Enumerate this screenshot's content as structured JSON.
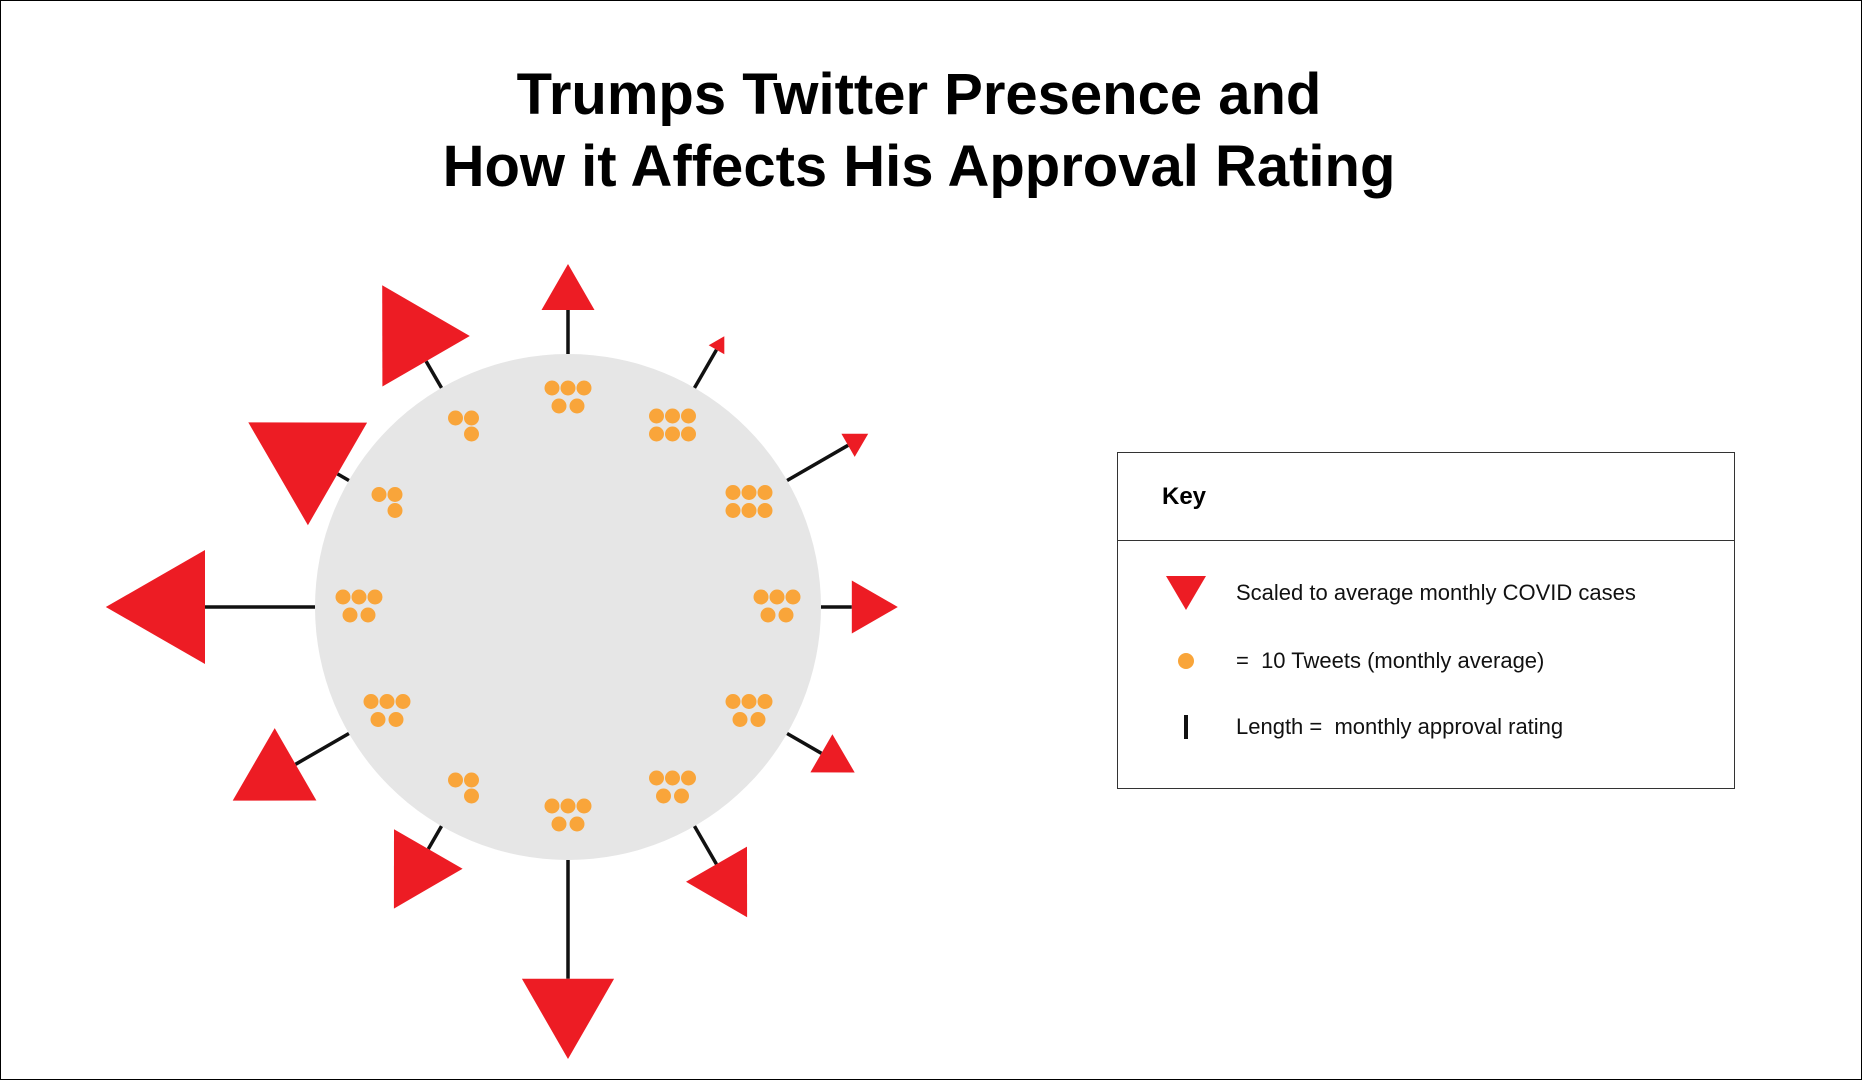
{
  "title": {
    "line1": "Trumps Twitter Presence and",
    "line2": "How it Affects His Approval Rating"
  },
  "colors": {
    "body": "#e6e6e6",
    "spike": "#ed1c24",
    "tweet_dot": "#f9a53a",
    "stem": "#111111"
  },
  "key": {
    "title": "Key",
    "items": [
      {
        "symbol": "red-triangle",
        "label": "Scaled to average monthly COVID cases"
      },
      {
        "symbol": "orange-dot",
        "label": "=  10 Tweets (monthly average)"
      },
      {
        "symbol": "black-line",
        "label": "Length =  monthly approval rating"
      }
    ]
  },
  "spikes": [
    {
      "dots": 5,
      "stem": 1.0,
      "covid": 1.0
    },
    {
      "dots": 6,
      "stem": 1.0,
      "covid": 0.2
    },
    {
      "dots": 6,
      "stem": 1.6,
      "covid": 0.4
    },
    {
      "dots": 5,
      "stem": 0.7,
      "covid": 1.0
    },
    {
      "dots": 5,
      "stem": 0.9,
      "covid": 0.8
    },
    {
      "dots": 5,
      "stem": 1.0,
      "covid": 1.4
    },
    {
      "dots": 5,
      "stem": 2.7,
      "covid": 1.9
    },
    {
      "dots": 3,
      "stem": 0.6,
      "covid": 1.6
    },
    {
      "dots": 5,
      "stem": 1.4,
      "covid": 1.7
    },
    {
      "dots": 5,
      "stem": 2.5,
      "covid": 2.4
    },
    {
      "dots": 3,
      "stem": 0.3,
      "covid": 2.5
    },
    {
      "dots": 3,
      "stem": 0.7,
      "covid": 2.1
    }
  ]
}
